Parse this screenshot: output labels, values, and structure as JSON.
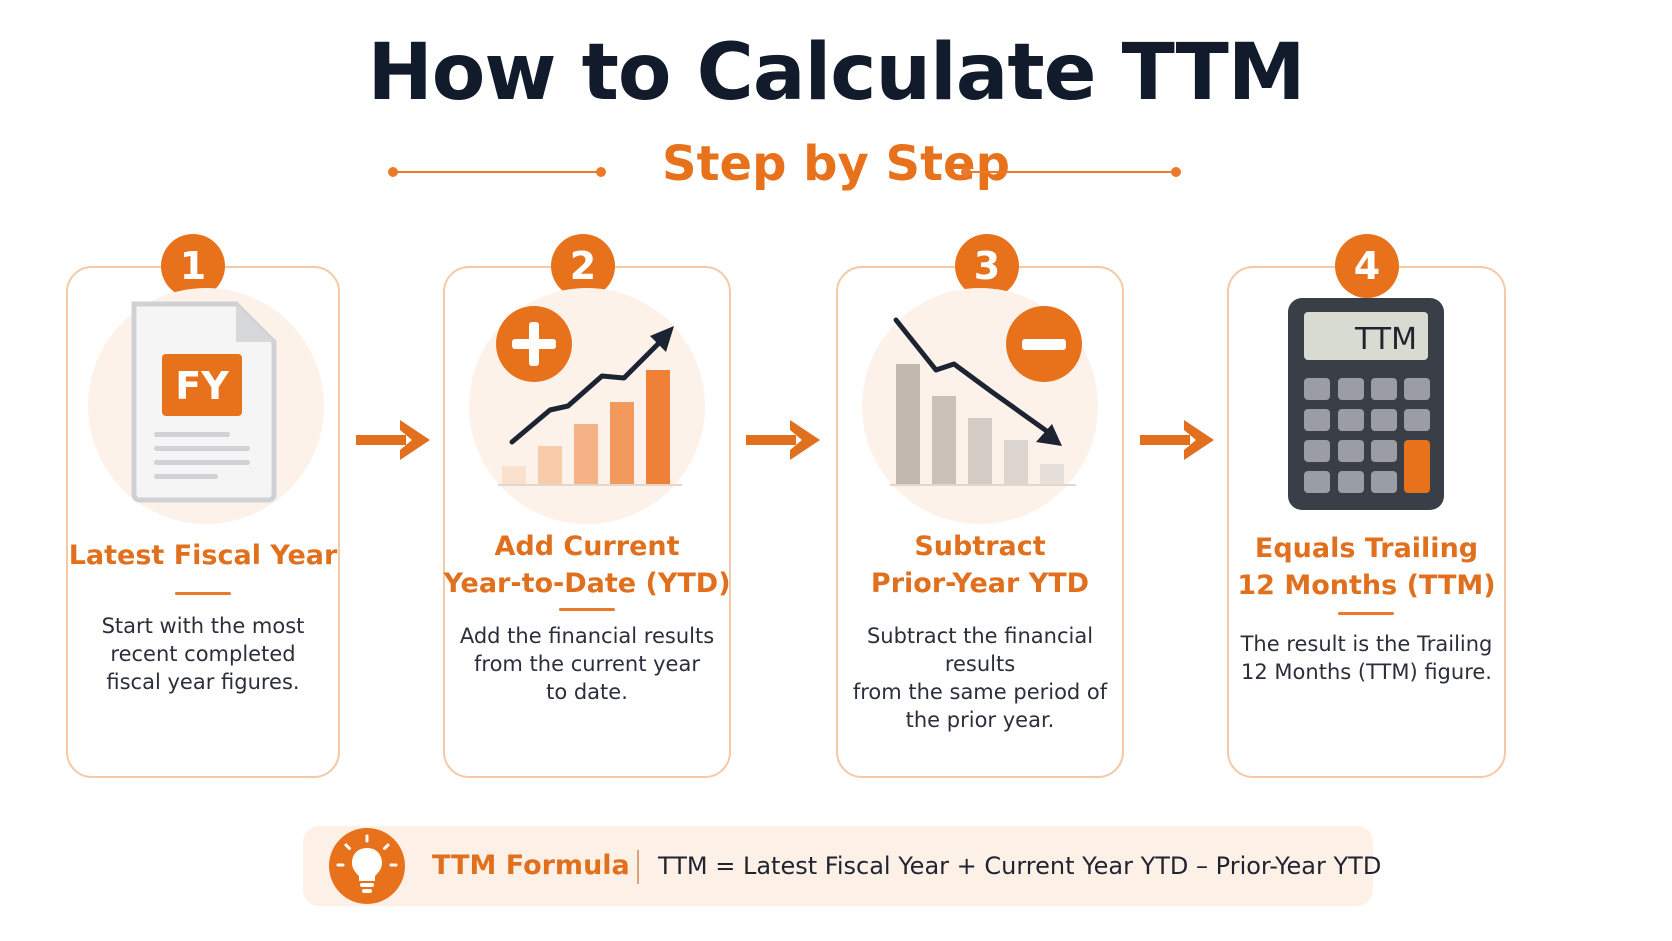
{
  "title": "How to Calculate TTM",
  "subtitle": "Step by Step",
  "steps": [
    {
      "number": "1",
      "title_lines": [
        "Latest Fiscal Year"
      ],
      "desc_lines": [
        "Start with the most",
        "recent completed",
        "fiscal year figures."
      ],
      "icon": "fiscal-year-document-icon",
      "icon_text": "FY"
    },
    {
      "number": "2",
      "title_lines": [
        "Add Current",
        "Year-to-Date (YTD)"
      ],
      "desc_lines": [
        "Add the financial results",
        "from the current year",
        "to date."
      ],
      "icon": "rising-bar-chart-plus-icon"
    },
    {
      "number": "3",
      "title_lines": [
        "Subtract",
        "Prior-Year YTD"
      ],
      "desc_lines": [
        "Subtract the financial results",
        "from the same period of",
        "the prior year."
      ],
      "icon": "falling-bar-chart-minus-icon"
    },
    {
      "number": "4",
      "title_lines": [
        "Equals Trailing",
        "12 Months (TTM)"
      ],
      "desc_lines": [
        "The result is the Trailing",
        "12 Months (TTM) figure."
      ],
      "icon": "calculator-icon",
      "icon_text": "TTM"
    }
  ],
  "formula": {
    "label": "TTM Formula",
    "text": "TTM = Latest Fiscal Year + Current Year YTD – Prior-Year YTD",
    "icon": "lightbulb-icon"
  },
  "colors": {
    "accent": "#e8721c",
    "title": "#121b2b",
    "card_border": "#f6c9a6"
  }
}
